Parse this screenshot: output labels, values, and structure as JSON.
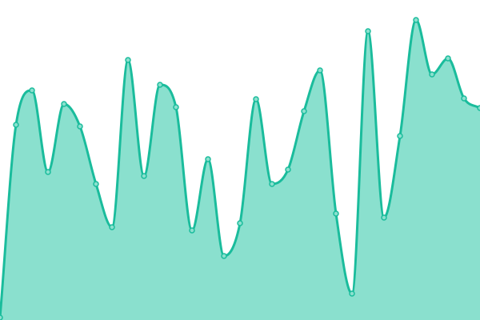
{
  "chart_data": {
    "type": "area",
    "title": "",
    "xlabel": "",
    "ylabel": "",
    "grid": false,
    "legend": "none",
    "x": [
      0,
      1,
      2,
      3,
      4,
      5,
      6,
      7,
      8,
      9,
      10,
      11,
      12,
      13,
      14,
      15,
      16,
      17,
      18,
      19,
      20,
      21,
      22,
      23,
      24,
      25,
      26,
      27,
      28,
      29,
      30
    ],
    "ylim": [
      0,
      400
    ],
    "series": [
      {
        "values": [
          3,
          244,
          287,
          185,
          270,
          242,
          170,
          116,
          325,
          180,
          294,
          266,
          112,
          201,
          80,
          121,
          276,
          170,
          188,
          261,
          312,
          133,
          33,
          361,
          128,
          230,
          375,
          307,
          327,
          277,
          265
        ]
      }
    ],
    "colors": {
      "line": "#1abc9c",
      "fill": "#8ae0ce",
      "point_fill": "#8ae0ce"
    },
    "interpolation": "smooth"
  }
}
